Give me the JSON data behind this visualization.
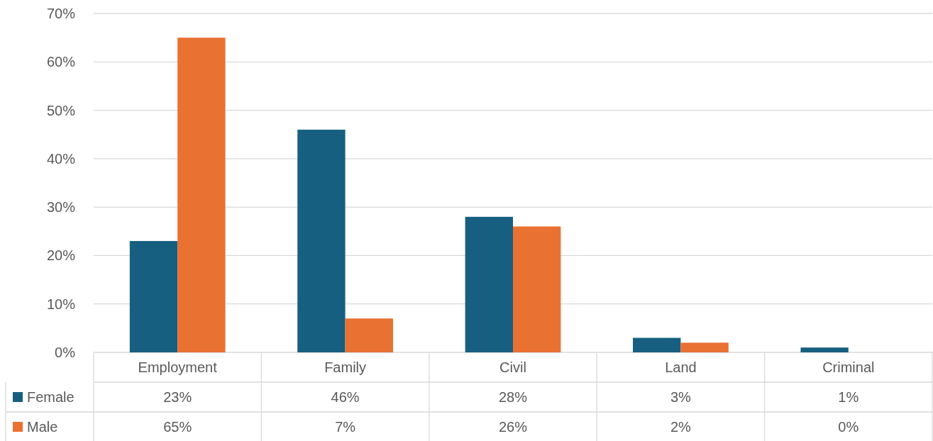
{
  "chart_data": {
    "type": "bar",
    "categories": [
      "Employment",
      "Family",
      "Civil",
      "Land",
      "Criminal"
    ],
    "series": [
      {
        "name": "Female",
        "color": "#175f80",
        "values": [
          23,
          46,
          28,
          3,
          1
        ],
        "value_labels": [
          "23%",
          "46%",
          "28%",
          "3%",
          "1%"
        ]
      },
      {
        "name": "Male",
        "color": "#e97132",
        "values": [
          65,
          7,
          26,
          2,
          0
        ],
        "value_labels": [
          "65%",
          "7%",
          "26%",
          "2%",
          "0%"
        ]
      }
    ],
    "ylim": [
      0,
      70
    ],
    "yticks": [
      {
        "value": 0,
        "label": "0%"
      },
      {
        "value": 10,
        "label": "10%"
      },
      {
        "value": 20,
        "label": "20%"
      },
      {
        "value": 30,
        "label": "30%"
      },
      {
        "value": 40,
        "label": "40%"
      },
      {
        "value": 50,
        "label": "50%"
      },
      {
        "value": 60,
        "label": "60%"
      },
      {
        "value": 70,
        "label": "70%"
      }
    ],
    "grid": "y",
    "legend": "bottom"
  }
}
